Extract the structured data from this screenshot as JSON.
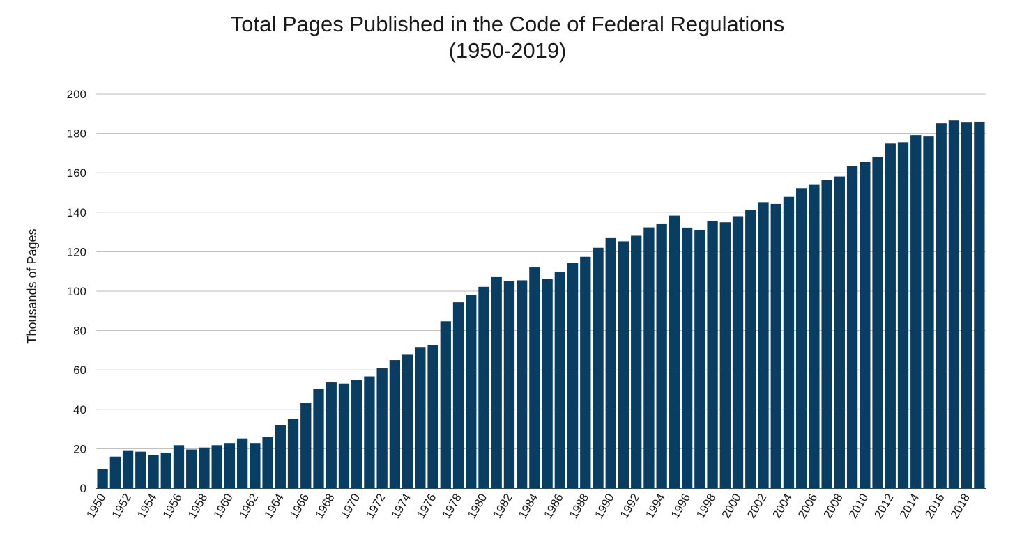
{
  "chart_data": {
    "type": "bar",
    "title": "Total Pages Published in the Code of Federal Regulations",
    "subtitle": "(1950-2019)",
    "xlabel": "",
    "ylabel": "Thousands of Pages",
    "ylim": [
      0,
      200
    ],
    "yticks": [
      0,
      20,
      40,
      60,
      80,
      100,
      120,
      140,
      160,
      180,
      200
    ],
    "xtick_labels": [
      "1950",
      "1952",
      "1954",
      "1956",
      "1958",
      "1960",
      "1962",
      "1964",
      "1966",
      "1968",
      "1970",
      "1972",
      "1974",
      "1976",
      "1978",
      "1980",
      "1982",
      "1984",
      "1986",
      "1988",
      "1990",
      "1992",
      "1994",
      "1996",
      "1998",
      "2000",
      "2002",
      "2004",
      "2006",
      "2008",
      "2010",
      "2012",
      "2014",
      "2016",
      "2018"
    ],
    "grid": "horizontal",
    "legend": "none",
    "bar_color": "#0a3d62",
    "categories": [
      "1950",
      "1951",
      "1952",
      "1953",
      "1954",
      "1955",
      "1956",
      "1957",
      "1958",
      "1959",
      "1960",
      "1961",
      "1962",
      "1963",
      "1964",
      "1965",
      "1966",
      "1967",
      "1968",
      "1969",
      "1970",
      "1971",
      "1972",
      "1973",
      "1974",
      "1975",
      "1976",
      "1977",
      "1978",
      "1979",
      "1980",
      "1981",
      "1982",
      "1983",
      "1984",
      "1985",
      "1986",
      "1987",
      "1988",
      "1989",
      "1990",
      "1991",
      "1992",
      "1993",
      "1994",
      "1995",
      "1996",
      "1997",
      "1998",
      "1999",
      "2000",
      "2001",
      "2002",
      "2003",
      "2004",
      "2005",
      "2006",
      "2007",
      "2008",
      "2009",
      "2010",
      "2011",
      "2012",
      "2013",
      "2014",
      "2015",
      "2016",
      "2017",
      "2018",
      "2019"
    ],
    "values": [
      9.7,
      16.0,
      19.2,
      18.5,
      16.7,
      18.0,
      21.8,
      19.6,
      20.6,
      21.8,
      22.9,
      25.2,
      22.9,
      25.8,
      31.8,
      35.0,
      43.3,
      50.4,
      53.7,
      53.1,
      54.8,
      56.7,
      60.8,
      65.0,
      67.7,
      71.3,
      72.7,
      84.7,
      94.3,
      97.9,
      102.2,
      107.1,
      105.0,
      105.5,
      112.0,
      106.1,
      109.8,
      114.3,
      117.4,
      122.0,
      126.9,
      125.3,
      128.1,
      132.3,
      134.3,
      138.3,
      132.2,
      131.1,
      135.4,
      134.9,
      138.0,
      141.2,
      145.1,
      144.2,
      147.8,
      152.2,
      154.2,
      156.2,
      158.1,
      163.3,
      165.5,
      168.0,
      174.8,
      175.5,
      179.1,
      178.4,
      185.1,
      186.5,
      185.8,
      185.9
    ]
  }
}
